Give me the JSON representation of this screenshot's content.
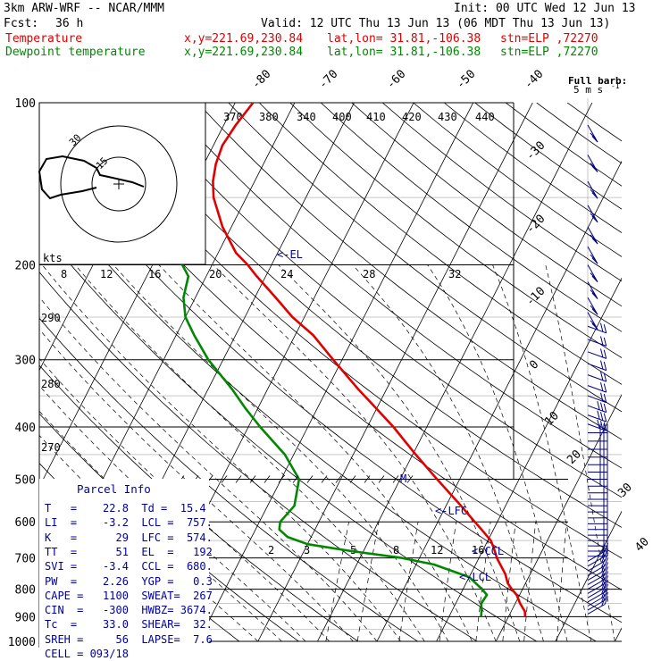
{
  "header": {
    "model": "3km ARW-WRF -- NCAR/MMM",
    "init": "Init: 00 UTC Wed 12 Jun 13",
    "fcst_label": "Fcst:",
    "fcst_value": "36 h",
    "valid": "Valid: 12 UTC Thu 13 Jun 13 (06 MDT Thu 13 Jun 13)",
    "temp_line": {
      "name": "Temperature",
      "xy": "x,y=221.69,230.84",
      "latlon": "lat,lon= 31.81,-106.38",
      "stn": "stn=ELP ,72270"
    },
    "dew_line": {
      "name": "Dewpoint temperature",
      "xy": "x,y=221.69,230.84",
      "latlon": "lat,lon= 31.81,-106.38",
      "stn": "stn=ELP ,72270"
    }
  },
  "colors": {
    "temperature": "#e00000",
    "dewpoint": "#008800",
    "barbs": "#000080",
    "grid": "#000000",
    "parcel": "#0000a0"
  },
  "chart_data": {
    "type": "line",
    "yscale": "log",
    "ylim": [
      1000,
      100
    ],
    "pressure_ticks": [
      100,
      200,
      300,
      400,
      500,
      600,
      700,
      800,
      900,
      1000
    ],
    "temperature_ticks": [
      -80,
      -70,
      -60,
      -50,
      -40,
      -30,
      -20,
      -10,
      0,
      10,
      20,
      30,
      40
    ],
    "theta_labels": [
      "370",
      "380",
      "340",
      "400",
      "410",
      "420",
      "430",
      "440"
    ],
    "mixing_ratio_labels": [
      "8",
      "12",
      "16",
      "20",
      "24",
      "28",
      "32"
    ],
    "mixing_ratio_low_labels": [
      "2",
      "3",
      "5",
      "8",
      "12",
      "16"
    ],
    "dry_adiabat_labels": [
      "290",
      "280",
      "270"
    ],
    "series": [
      {
        "name": "Temperature",
        "p": [
          900,
          880,
          850,
          820,
          800,
          780,
          750,
          700,
          670,
          650,
          620,
          600,
          560,
          500,
          450,
          400,
          370,
          340,
          300,
          270,
          250,
          230,
          210,
          200,
          190,
          170,
          150,
          140,
          130,
          120,
          110,
          100
        ],
        "t": [
          22.8,
          22.3,
          20.8,
          19.5,
          18.2,
          17.0,
          15.8,
          13.0,
          11.6,
          10.5,
          8.0,
          6.2,
          2.5,
          -3.8,
          -9.5,
          -15.6,
          -20.0,
          -24.8,
          -31.5,
          -37.0,
          -42.0,
          -46.5,
          -51.5,
          -54.0,
          -57.0,
          -61.5,
          -65.5,
          -67.0,
          -68.0,
          -68.5,
          -68.0,
          -67.0
        ]
      },
      {
        "name": "Dewpoint temperature",
        "p": [
          900,
          880,
          850,
          820,
          800,
          760,
          720,
          700,
          680,
          660,
          640,
          620,
          600,
          560,
          500,
          450,
          400,
          370,
          340,
          300,
          270,
          250,
          230,
          210,
          200,
          190,
          170,
          150,
          140,
          130,
          120,
          110,
          100
        ],
        "td": [
          15.4,
          15.0,
          14.3,
          14.5,
          13.2,
          10.0,
          3.0,
          -3.0,
          -12.0,
          -20.0,
          -24.0,
          -26.0,
          -26.5,
          -25.5,
          -27.0,
          -31.5,
          -38.0,
          -42.0,
          -46.0,
          -52.5,
          -57.0,
          -60.0,
          -62.0,
          -63.0,
          -65.0,
          -69.0,
          -73.5,
          -79.0,
          -82.0,
          -85.0,
          -87.0,
          -88.0,
          -89.0
        ]
      }
    ],
    "annotations": [
      "<-EL",
      "<-LFC",
      "<-CCL",
      "<-LCL",
      "M"
    ],
    "barb_legend": {
      "line1": "Full barb:",
      "line2": "5 m s",
      "exp": "-1"
    },
    "hodograph": {
      "unit_label": "kts",
      "ring_labels": [
        "15",
        "30"
      ]
    }
  },
  "parcel_info": {
    "title": "Parcel Info",
    "rows": [
      "T   =    22.8  Td =  15.4",
      "LI  =    -3.2  LCL =  757.",
      "K   =      29  LFC =  574.",
      "TT  =      51  EL  =   192",
      "SVI =    -3.4  CCL =  680.",
      "PW  =    2.26  YGP =   0.3",
      "CAPE =   1100  SWEAT=  267",
      "CIN  =   -300  HWBZ= 3674.",
      "Tc  =    33.0  SHEAR=  32.",
      "SREH =     56  LAPSE=  7.6",
      "CELL = 093/18"
    ]
  }
}
